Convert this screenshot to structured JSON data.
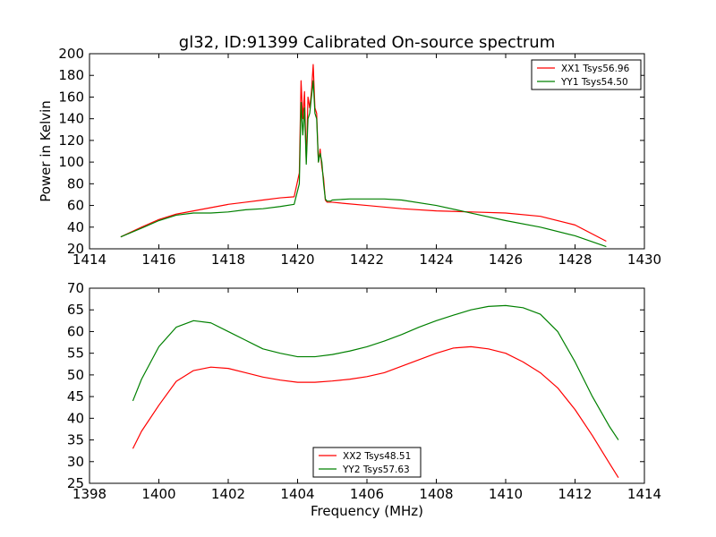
{
  "chart_data": [
    {
      "type": "line",
      "title": "gl32, ID:91399 Calibrated On-source spectrum",
      "xlabel": "",
      "ylabel": "Power in Kelvin",
      "xlim": [
        1414,
        1430
      ],
      "ylim": [
        20,
        200
      ],
      "xticks": [
        "1414",
        "1416",
        "1418",
        "1420",
        "1422",
        "1424",
        "1426",
        "1428",
        "1430"
      ],
      "yticks": [
        "20",
        "40",
        "60",
        "80",
        "100",
        "120",
        "140",
        "160",
        "180",
        "200"
      ],
      "legend_position": "top-right",
      "series": [
        {
          "name": "XX1 Tsys56.96",
          "color": "#ff0000",
          "x": [
            1414.9,
            1415.5,
            1416,
            1416.5,
            1417,
            1417.5,
            1418,
            1418.5,
            1419,
            1419.5,
            1419.9,
            1420.05,
            1420.1,
            1420.15,
            1420.2,
            1420.25,
            1420.3,
            1420.35,
            1420.4,
            1420.45,
            1420.5,
            1420.55,
            1420.6,
            1420.65,
            1420.7,
            1420.75,
            1420.8,
            1420.85,
            1420.9,
            1420.95,
            1421.0,
            1421.3,
            1422,
            1423,
            1424,
            1425,
            1426,
            1427,
            1428,
            1428.9
          ],
          "values": [
            31,
            40,
            47,
            52,
            55,
            58,
            61,
            63,
            65,
            67,
            68,
            90,
            175,
            140,
            165,
            100,
            160,
            150,
            165,
            190,
            150,
            145,
            100,
            112,
            95,
            85,
            65,
            63,
            63,
            63,
            63,
            62,
            60,
            57,
            55,
            54,
            53,
            50,
            42,
            27
          ]
        },
        {
          "name": "YY1 Tsys54.50",
          "color": "#008000",
          "x": [
            1414.9,
            1415.5,
            1416,
            1416.5,
            1417,
            1417.5,
            1418,
            1418.5,
            1419,
            1419.5,
            1419.9,
            1420.05,
            1420.1,
            1420.15,
            1420.2,
            1420.25,
            1420.3,
            1420.35,
            1420.4,
            1420.45,
            1420.5,
            1420.55,
            1420.6,
            1420.65,
            1420.7,
            1420.75,
            1420.8,
            1420.85,
            1420.9,
            1420.95,
            1421.0,
            1421.5,
            1422,
            1422.5,
            1423,
            1424,
            1425,
            1426,
            1427,
            1428,
            1428.9
          ],
          "values": [
            31,
            39,
            46,
            51,
            53,
            53,
            54,
            56,
            57,
            59,
            61,
            80,
            155,
            125,
            150,
            98,
            140,
            145,
            160,
            175,
            145,
            140,
            100,
            108,
            100,
            80,
            66,
            64,
            64,
            64,
            65,
            66,
            66,
            66,
            65,
            60,
            53,
            46,
            40,
            32,
            22
          ]
        }
      ]
    },
    {
      "type": "line",
      "title": "",
      "xlabel": "Frequency (MHz)",
      "ylabel": "",
      "xlim": [
        1398,
        1414
      ],
      "ylim": [
        25,
        70
      ],
      "xticks": [
        "1398",
        "1400",
        "1402",
        "1404",
        "1406",
        "1408",
        "1410",
        "1412",
        "1414"
      ],
      "yticks": [
        "25",
        "30",
        "35",
        "40",
        "45",
        "50",
        "55",
        "60",
        "65",
        "70"
      ],
      "legend_position": "bottom-center",
      "series": [
        {
          "name": "XX2 Tsys48.51",
          "color": "#ff0000",
          "x": [
            1399.25,
            1399.5,
            1400,
            1400.5,
            1401,
            1401.5,
            1402,
            1402.5,
            1403,
            1403.5,
            1404,
            1404.5,
            1405,
            1405.5,
            1406,
            1406.5,
            1407,
            1407.5,
            1408,
            1408.5,
            1409,
            1409.5,
            1410,
            1410.5,
            1411,
            1411.5,
            1412,
            1412.5,
            1413,
            1413.25
          ],
          "values": [
            33,
            37,
            43,
            48.5,
            51,
            51.8,
            51.5,
            50.5,
            49.5,
            48.8,
            48.3,
            48.3,
            48.6,
            49,
            49.6,
            50.5,
            52,
            53.5,
            55,
            56.2,
            56.5,
            56,
            55,
            53,
            50.5,
            47,
            42,
            36,
            29.5,
            26.3
          ]
        },
        {
          "name": "YY2 Tsys57.63",
          "color": "#008000",
          "x": [
            1399.25,
            1399.5,
            1400,
            1400.5,
            1401,
            1401.5,
            1402,
            1402.5,
            1403,
            1403.5,
            1404,
            1404.5,
            1405,
            1405.5,
            1406,
            1406.5,
            1407,
            1407.5,
            1408,
            1408.5,
            1409,
            1409.5,
            1410,
            1410.5,
            1411,
            1411.5,
            1412,
            1412.5,
            1413,
            1413.25
          ],
          "values": [
            44,
            49,
            56.5,
            61,
            62.5,
            62,
            60,
            58,
            56,
            55,
            54.2,
            54.2,
            54.7,
            55.5,
            56.5,
            57.8,
            59.3,
            61,
            62.5,
            63.8,
            65,
            65.8,
            66,
            65.5,
            64,
            60,
            53,
            45,
            38,
            35
          ]
        }
      ]
    }
  ]
}
